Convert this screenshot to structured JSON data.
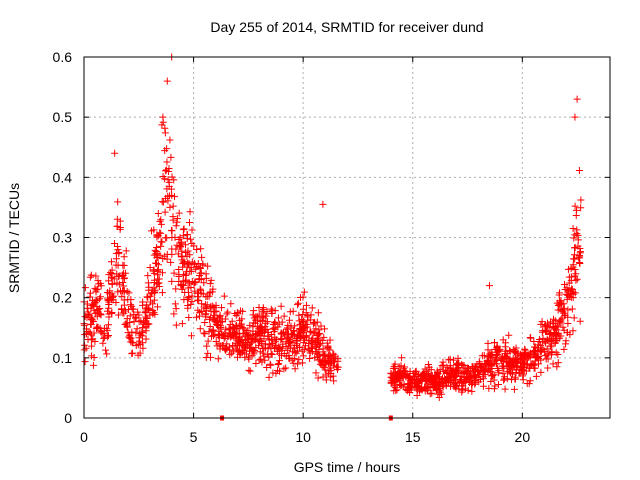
{
  "chart_data": {
    "type": "scatter",
    "title": "Day 255 of 2014, SRMTID for receiver dund",
    "xlabel": "GPS time / hours",
    "ylabel": "SRMTID / TECUs",
    "xlim": [
      0,
      24
    ],
    "ylim": [
      0,
      0.6
    ],
    "x_ticks": [
      0,
      5,
      10,
      15,
      20
    ],
    "x_tick_labels": [
      "0",
      "5",
      "10",
      "15",
      "20"
    ],
    "y_ticks": [
      0,
      0.1,
      0.2,
      0.3,
      0.4,
      0.5,
      0.6
    ],
    "y_tick_labels": [
      "0",
      "0.1",
      "0.2",
      "0.3",
      "0.4",
      "0.5",
      "0.6"
    ],
    "grid": true,
    "marker": "plus",
    "color": "#ff0000",
    "series": [
      {
        "name": "SRMTID",
        "profile": [
          {
            "x": 0.0,
            "y": 0.15
          },
          {
            "x": 0.3,
            "y": 0.16
          },
          {
            "x": 0.7,
            "y": 0.19
          },
          {
            "x": 1.0,
            "y": 0.15
          },
          {
            "x": 1.5,
            "y": 0.28
          },
          {
            "x": 2.0,
            "y": 0.17
          },
          {
            "x": 2.5,
            "y": 0.14
          },
          {
            "x": 3.0,
            "y": 0.18
          },
          {
            "x": 3.5,
            "y": 0.3
          },
          {
            "x": 3.8,
            "y": 0.4
          },
          {
            "x": 4.0,
            "y": 0.32
          },
          {
            "x": 4.5,
            "y": 0.25
          },
          {
            "x": 5.0,
            "y": 0.22
          },
          {
            "x": 5.5,
            "y": 0.2
          },
          {
            "x": 6.0,
            "y": 0.16
          },
          {
            "x": 6.5,
            "y": 0.13
          },
          {
            "x": 7.0,
            "y": 0.14
          },
          {
            "x": 7.5,
            "y": 0.12
          },
          {
            "x": 8.0,
            "y": 0.14
          },
          {
            "x": 8.5,
            "y": 0.13
          },
          {
            "x": 9.0,
            "y": 0.14
          },
          {
            "x": 9.5,
            "y": 0.12
          },
          {
            "x": 10.0,
            "y": 0.15
          },
          {
            "x": 10.5,
            "y": 0.13
          },
          {
            "x": 11.0,
            "y": 0.1
          },
          {
            "x": 11.5,
            "y": 0.08
          },
          {
            "x": 14.0,
            "y": 0.06
          },
          {
            "x": 14.5,
            "y": 0.07
          },
          {
            "x": 15.0,
            "y": 0.06
          },
          {
            "x": 15.5,
            "y": 0.06
          },
          {
            "x": 16.0,
            "y": 0.06
          },
          {
            "x": 16.5,
            "y": 0.07
          },
          {
            "x": 17.0,
            "y": 0.07
          },
          {
            "x": 17.5,
            "y": 0.07
          },
          {
            "x": 18.0,
            "y": 0.08
          },
          {
            "x": 18.5,
            "y": 0.09
          },
          {
            "x": 19.0,
            "y": 0.1
          },
          {
            "x": 19.5,
            "y": 0.09
          },
          {
            "x": 20.0,
            "y": 0.09
          },
          {
            "x": 20.5,
            "y": 0.1
          },
          {
            "x": 21.0,
            "y": 0.12
          },
          {
            "x": 21.5,
            "y": 0.14
          },
          {
            "x": 22.0,
            "y": 0.18
          },
          {
            "x": 22.3,
            "y": 0.24
          },
          {
            "x": 22.6,
            "y": 0.3
          }
        ],
        "spikes": [
          {
            "x": 1.4,
            "y": 0.44
          },
          {
            "x": 3.6,
            "y": 0.5
          },
          {
            "x": 4.0,
            "y": 0.6
          },
          {
            "x": 3.8,
            "y": 0.56
          },
          {
            "x": 10.9,
            "y": 0.355
          },
          {
            "x": 22.5,
            "y": 0.53
          },
          {
            "x": 22.4,
            "y": 0.5
          },
          {
            "x": 18.5,
            "y": 0.22
          }
        ],
        "zero_points": [
          {
            "x": 6.3,
            "y": 0
          },
          {
            "x": 14.0,
            "y": 0
          }
        ]
      }
    ]
  }
}
